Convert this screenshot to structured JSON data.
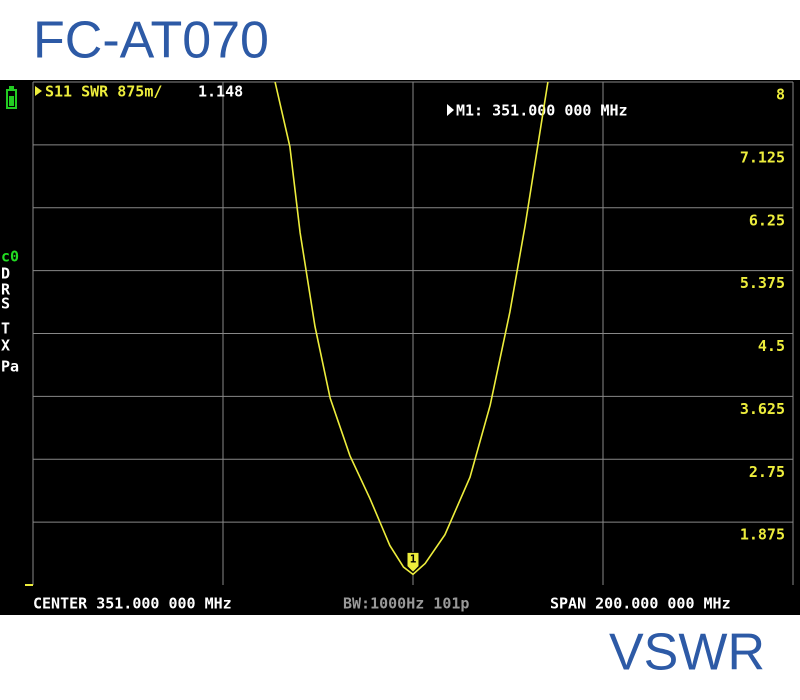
{
  "header": {
    "title": "FC-AT070"
  },
  "sidebar": {
    "labels": [
      "c0",
      "D",
      "R",
      "S",
      "T",
      "X",
      "Pa"
    ]
  },
  "chart_data": {
    "type": "line",
    "trace_value": 1.148,
    "marker": {
      "label": "1",
      "text": "M1: 351.000 000 MHz",
      "x": 351
    },
    "x": [
      314.7,
      318.6,
      321.3,
      325.2,
      329.2,
      334.4,
      339.7,
      344.9,
      348.5,
      351,
      354.2,
      359.4,
      366,
      371.3,
      376.5,
      380.5,
      384.4,
      386.5
    ],
    "series": [
      {
        "name": "S11 SWR 875m/",
        "color": "#eded3c",
        "values": [
          8,
          7.1,
          5.9,
          4.6,
          3.6,
          2.8,
          2.2,
          1.55,
          1.25,
          1.148,
          1.3,
          1.7,
          2.5,
          3.5,
          4.8,
          6.0,
          7.3,
          8
        ]
      }
    ],
    "xlim": [
      251,
      451
    ],
    "ylim": [
      1,
      8
    ],
    "yticks": [
      1.875,
      2.75,
      3.625,
      4.5,
      5.375,
      6.25,
      7.125,
      8
    ],
    "grid": true
  },
  "status": {
    "center": "CENTER 351.000 000 MHz",
    "bandwidth": "BW:1000Hz 101p",
    "span": "SPAN 200.000 000 MHz"
  },
  "footer": {
    "label": "VSWR"
  }
}
